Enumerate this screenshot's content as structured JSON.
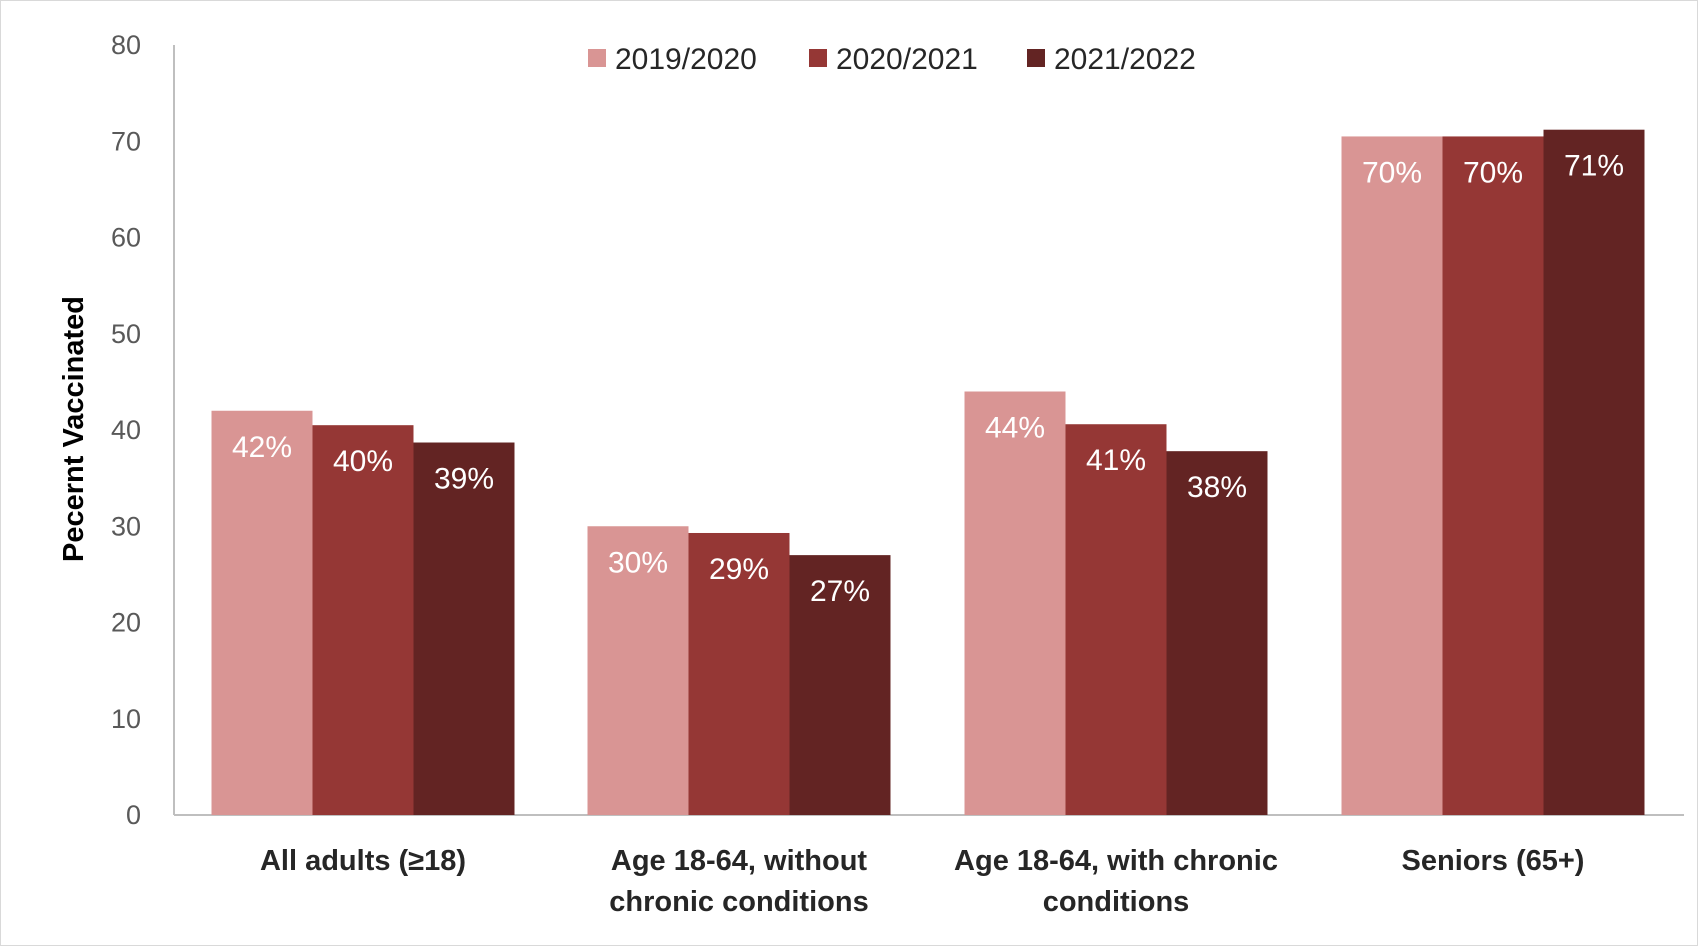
{
  "chart_data": {
    "type": "bar",
    "title": "",
    "xlabel": "",
    "ylabel": "Pecernt Vaccinated",
    "ylim": [
      0,
      80
    ],
    "yticks": [
      0,
      10,
      20,
      30,
      40,
      50,
      60,
      70,
      80
    ],
    "grid": false,
    "legend_position": "top-center",
    "categories": [
      [
        "All adults (≥18)"
      ],
      [
        "Age 18-64, without",
        "chronic conditions"
      ],
      [
        "Age 18-64, with chronic",
        "conditions"
      ],
      [
        "Seniors (65+)"
      ]
    ],
    "series": [
      {
        "name": "2019/2020",
        "color": "#d99594",
        "values": [
          42,
          30,
          44,
          70.5
        ],
        "labels": [
          "42%",
          "30%",
          "44%",
          "70%"
        ]
      },
      {
        "name": "2020/2021",
        "color": "#953735",
        "values": [
          40.5,
          29.3,
          40.6,
          70.5
        ],
        "labels": [
          "40%",
          "29%",
          "41%",
          "70%"
        ]
      },
      {
        "name": "2021/2022",
        "color": "#632423",
        "values": [
          38.7,
          27,
          37.8,
          71.2
        ],
        "labels": [
          "39%",
          "27%",
          "38%",
          "71%"
        ]
      }
    ]
  }
}
